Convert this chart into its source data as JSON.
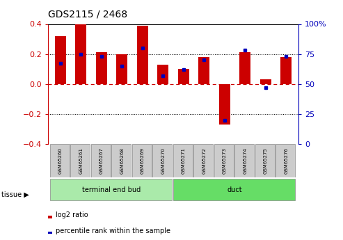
{
  "title": "GDS2115 / 2468",
  "samples": [
    "GSM65260",
    "GSM65261",
    "GSM65267",
    "GSM65268",
    "GSM65269",
    "GSM65270",
    "GSM65271",
    "GSM65272",
    "GSM65273",
    "GSM65274",
    "GSM65275",
    "GSM65276"
  ],
  "log2_ratio": [
    0.32,
    0.4,
    0.21,
    0.2,
    0.39,
    0.13,
    0.1,
    0.18,
    -0.27,
    0.21,
    0.03,
    0.18
  ],
  "percentile_rank": [
    67,
    75,
    73,
    65,
    80,
    57,
    62,
    70,
    20,
    78,
    47,
    73
  ],
  "groups": [
    {
      "label": "terminal end bud",
      "start": 0,
      "end": 6,
      "color": "#AAEAAA"
    },
    {
      "label": "duct",
      "start": 6,
      "end": 12,
      "color": "#66DD66"
    }
  ],
  "bar_color": "#CC0000",
  "dot_color": "#0000BB",
  "ylim": [
    -0.4,
    0.4
  ],
  "y2lim": [
    0,
    100
  ],
  "yticks": [
    -0.4,
    -0.2,
    0.0,
    0.2,
    0.4
  ],
  "y2ticks": [
    0,
    25,
    50,
    75,
    100
  ],
  "y2ticklabels": [
    "0",
    "25",
    "50",
    "75",
    "100%"
  ],
  "hline_color": "#CC0000",
  "dotline_color": "black",
  "background": "white",
  "tissue_label": "tissue",
  "legend_items": [
    {
      "label": "log2 ratio",
      "color": "#CC0000"
    },
    {
      "label": "percentile rank within the sample",
      "color": "#0000BB"
    }
  ]
}
